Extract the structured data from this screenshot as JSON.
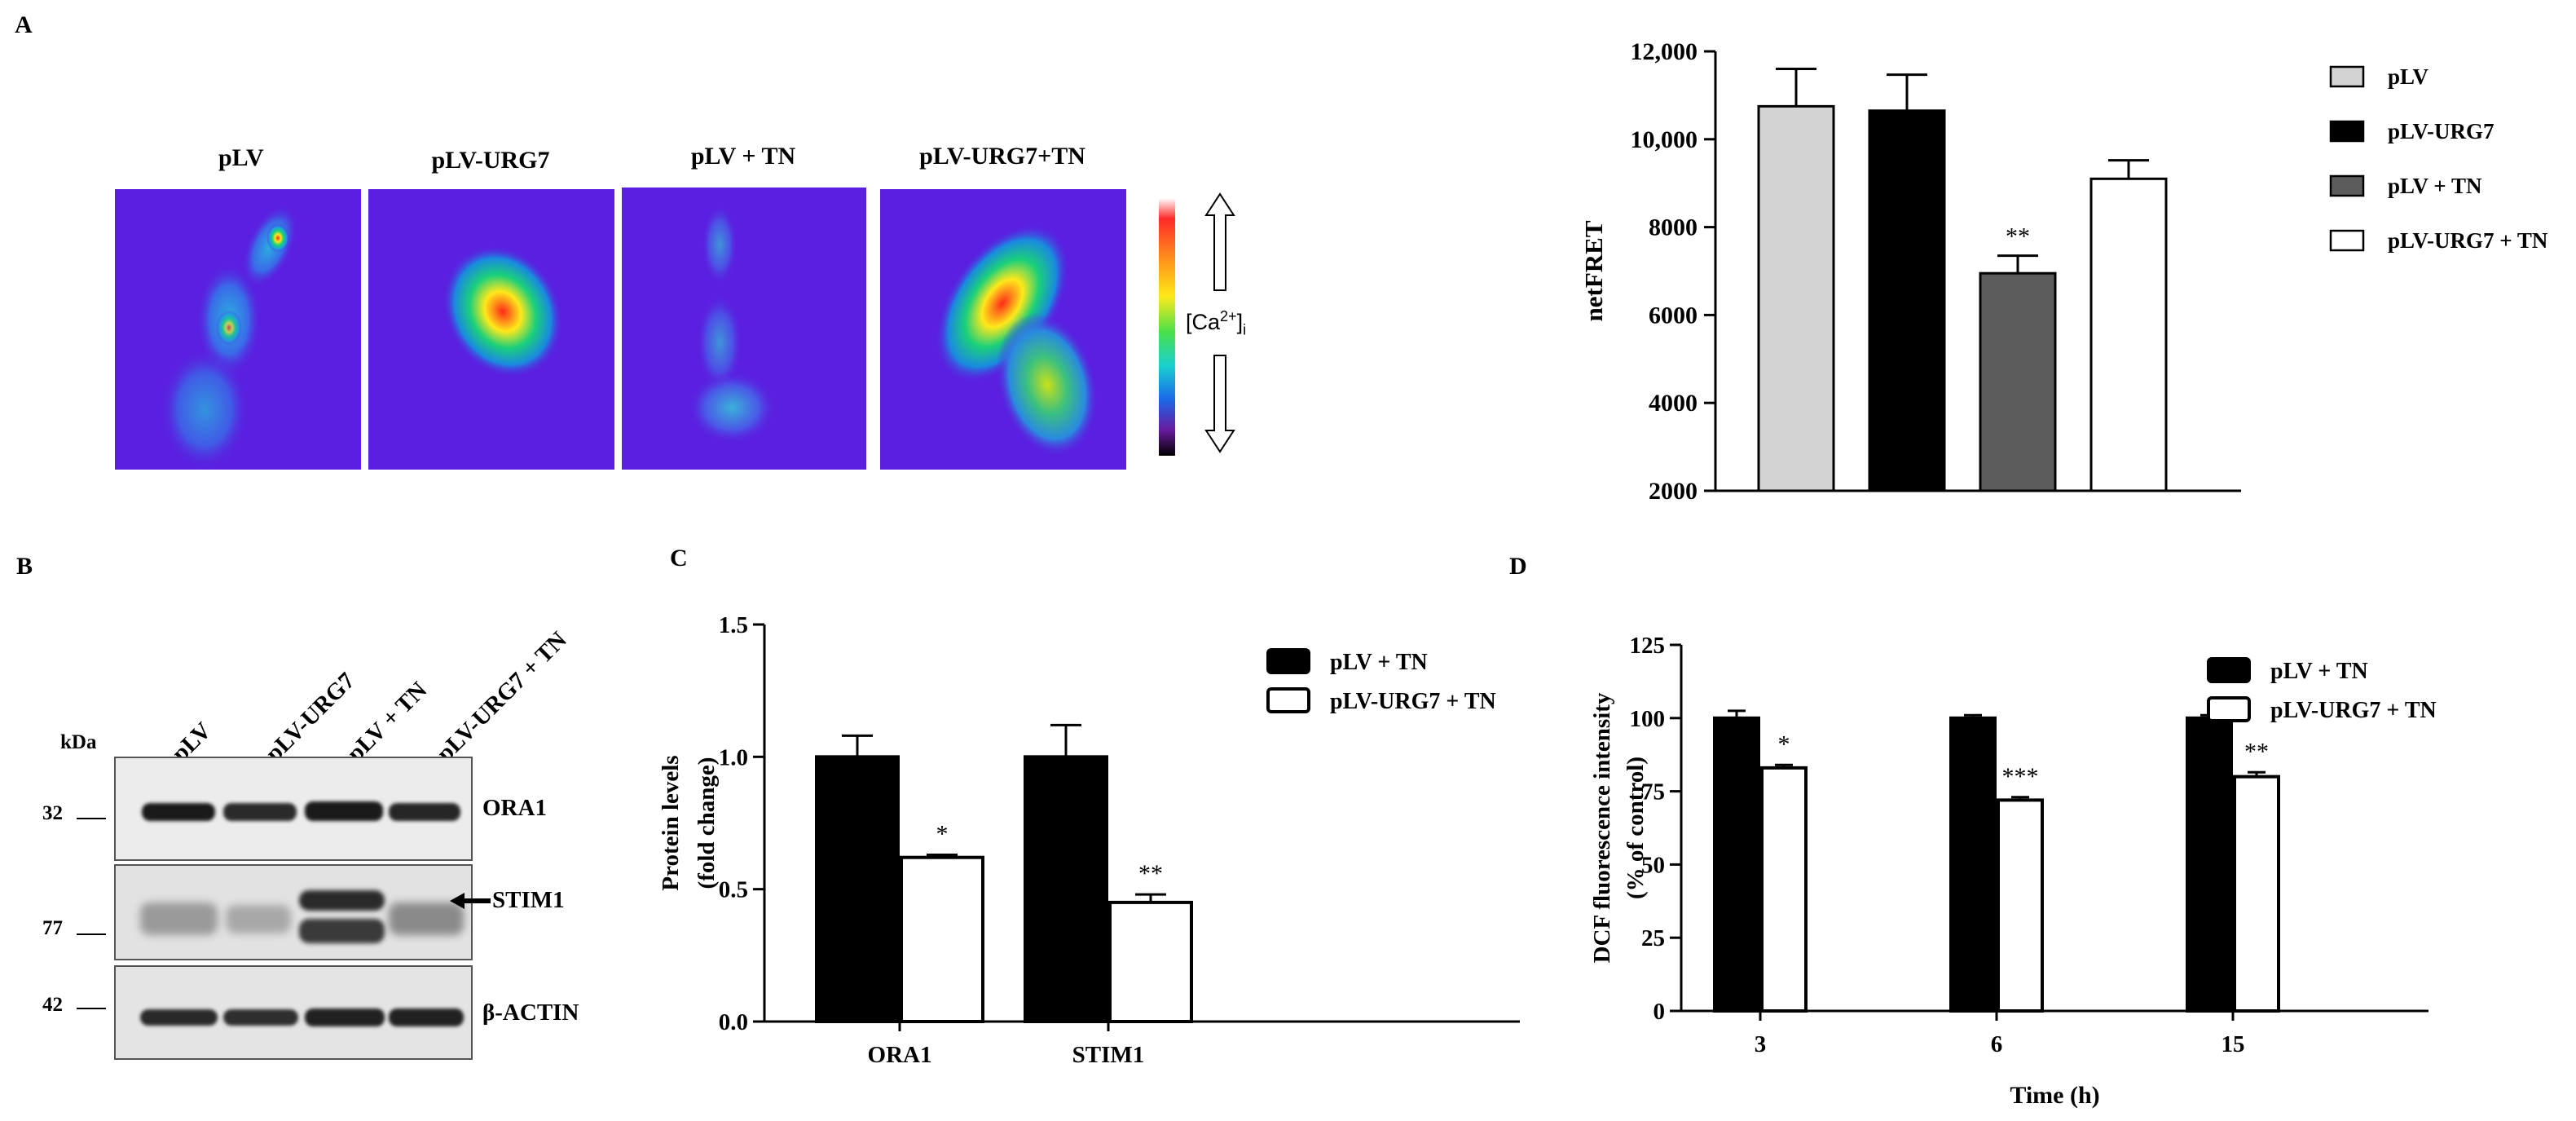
{
  "panels": {
    "a": "A",
    "b": "B",
    "c": "C",
    "d": "D"
  },
  "panel_a_images": {
    "labels": [
      "pLV",
      "pLV-URG7",
      "pLV  + TN",
      "pLV-URG7+TN"
    ],
    "scale_label_main": "[Ca",
    "scale_label_sup": "2+",
    "scale_label_end": "]",
    "scale_label_sub": "i"
  },
  "western_blot": {
    "kda_label": "kDa",
    "lanes": [
      "pLV",
      "pLV-URG7",
      "pLV + TN",
      "pLV-URG7 + TN"
    ],
    "proteins": [
      "ORA1",
      "STIM1",
      "β-ACTIN"
    ],
    "markers": [
      "32",
      "77",
      "42"
    ]
  },
  "colors": {
    "light_gray": "#d3d3d3",
    "black": "#000000",
    "dark_gray": "#5c5c5c",
    "white": "#ffffff",
    "micro_bg": "#5a1fe0"
  },
  "chart_data": [
    {
      "id": "A",
      "type": "bar",
      "title": "",
      "xlabel": "",
      "ylabel": "netFRET",
      "ylim": [
        2000,
        12000
      ],
      "yticks": [
        2000,
        4000,
        6000,
        8000,
        10000,
        12000
      ],
      "ytick_labels": [
        "2000",
        "4000",
        "6000",
        "8000",
        "10,000",
        "12,000"
      ],
      "categories": [
        "pLV",
        "pLV-URG7",
        "pLV + TN",
        "pLV-URG7 + TN"
      ],
      "values": [
        10750,
        10650,
        6950,
        9100
      ],
      "errors": [
        850,
        820,
        400,
        420
      ],
      "annotations": [
        "",
        "",
        "**",
        ""
      ],
      "legend": [
        "pLV",
        "pLV-URG7",
        "pLV + TN",
        "pLV-URG7 + TN"
      ],
      "legend_position": "right"
    },
    {
      "id": "C",
      "type": "bar",
      "title": "",
      "xlabel": "",
      "ylabel_line1": "Protein levels",
      "ylabel_line2": "(fold change)",
      "ylim": [
        0,
        1.5
      ],
      "yticks": [
        0,
        0.5,
        1.0,
        1.5
      ],
      "ytick_labels": [
        "0.0",
        "0.5",
        "1.0",
        "1.5"
      ],
      "categories": [
        "ORA1",
        "STIM1"
      ],
      "series": [
        {
          "name": "pLV + TN",
          "values": [
            1.0,
            1.0
          ],
          "errors": [
            0.08,
            0.12
          ],
          "annotations": [
            "",
            ""
          ]
        },
        {
          "name": "pLV-URG7 + TN",
          "values": [
            0.62,
            0.45
          ],
          "errors": [
            0.01,
            0.03
          ],
          "annotations": [
            "*",
            "**"
          ]
        }
      ],
      "legend_position": "top-right"
    },
    {
      "id": "D",
      "type": "bar",
      "title": "",
      "xlabel": "Time (h)",
      "ylabel_line1": "DCF fluorescence intensity",
      "ylabel_line2": "(% of control)",
      "ylim": [
        0,
        125
      ],
      "yticks": [
        0,
        25,
        50,
        75,
        100,
        125
      ],
      "ytick_labels": [
        "0",
        "25",
        "50",
        "75",
        "100",
        "125"
      ],
      "categories": [
        "3",
        "6",
        "15"
      ],
      "series": [
        {
          "name": "pLV + TN",
          "values": [
            100,
            100,
            100
          ],
          "errors": [
            2.5,
            1,
            1
          ],
          "annotations": [
            "",
            "",
            ""
          ]
        },
        {
          "name": "pLV-URG7 + TN",
          "values": [
            83,
            72,
            80
          ],
          "errors": [
            1,
            1,
            1.5
          ],
          "annotations": [
            "*",
            "***",
            "**"
          ]
        }
      ],
      "legend_position": "top-right"
    }
  ]
}
